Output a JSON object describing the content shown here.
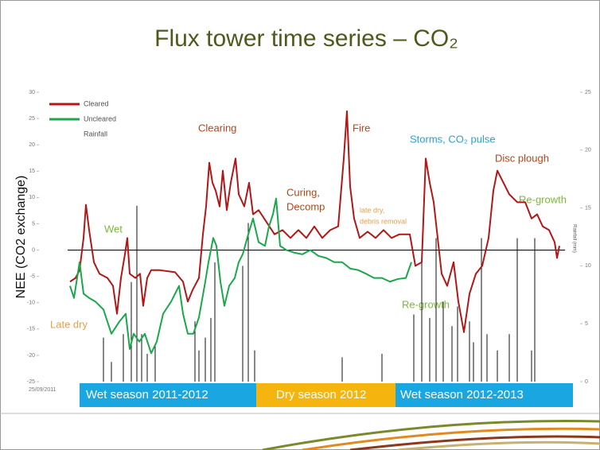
{
  "chart_data": {
    "type": "line",
    "title": "Flux tower time series – CO₂",
    "y_label": "NEE (CO2 exchange)",
    "y2_label": "Rainfall (mm)",
    "x_start_label": "25/09/2011",
    "xlim": [
      0,
      625
    ],
    "ylim": [
      -25,
      30
    ],
    "yticks": [
      -25,
      -20,
      -15,
      -10,
      -5,
      0,
      5,
      10,
      15,
      20,
      25,
      30
    ],
    "y2lim": [
      0,
      25
    ],
    "y2ticks": [
      0,
      5,
      10,
      15,
      20,
      25
    ],
    "legend": "top-left",
    "series": [
      {
        "name": "Cleared",
        "color": "#b01818",
        "type": "line",
        "x": [
          3,
          10,
          15,
          20,
          23,
          27,
          33,
          40,
          50,
          57,
          62,
          67,
          72,
          75,
          78,
          85,
          91,
          95,
          100,
          105,
          115,
          135,
          145,
          151,
          157,
          165,
          170,
          174,
          178,
          182,
          186,
          191,
          195,
          200,
          205,
          211,
          215,
          222,
          228,
          233,
          240,
          250,
          260,
          270,
          280,
          290,
          300,
          310,
          320,
          330,
          340,
          347,
          351,
          355,
          360,
          367,
          377,
          387,
          397,
          407,
          417,
          430,
          437,
          445,
          450,
          455,
          460,
          465,
          470,
          477,
          485,
          491,
          498,
          505,
          513,
          521,
          529,
          535,
          540,
          545,
          555,
          565,
          575,
          583,
          590,
          597,
          605,
          612,
          615,
          618
        ],
        "values": [
          -6,
          -5.3,
          -3.8,
          2.3,
          8.6,
          3.8,
          -2.3,
          -4.5,
          -5.3,
          -6.8,
          -12.1,
          -5.3,
          -0.8,
          2.3,
          -4.5,
          -5.3,
          -4.5,
          -10.6,
          -5.3,
          -3.8,
          -3.8,
          -4.2,
          -6,
          -9.8,
          -7.6,
          -5.3,
          3,
          8.3,
          16.6,
          12.8,
          11.3,
          8.3,
          15.1,
          7.6,
          12.8,
          17.4,
          10.6,
          8.3,
          12.8,
          6.8,
          7.6,
          5.3,
          3,
          3.8,
          2.3,
          3.8,
          2.3,
          4.5,
          2.3,
          3.8,
          4.5,
          17.4,
          26.4,
          12.1,
          6,
          2.3,
          3.5,
          2.3,
          3.8,
          2.3,
          3,
          3,
          -3,
          -2.3,
          17.4,
          12.8,
          9.1,
          2.3,
          -4.5,
          -6.8,
          -2.3,
          -9.8,
          -15.6,
          -8.3,
          -4.5,
          -3,
          2.3,
          11.3,
          15.1,
          13.6,
          10.6,
          9.1,
          9.1,
          6,
          6.8,
          4.5,
          3.8,
          1.5,
          -1.5,
          0.8
        ]
      },
      {
        "name": "Uncleared",
        "color": "#1aa84a",
        "type": "line",
        "x": [
          3,
          8,
          15,
          20,
          27,
          35,
          45,
          55,
          65,
          73,
          78,
          83,
          90,
          97,
          105,
          112,
          120,
          130,
          140,
          145,
          151,
          158,
          165,
          173,
          177,
          183,
          187,
          192,
          197,
          203,
          210,
          215,
          220,
          227,
          233,
          240,
          248,
          253,
          258,
          262,
          267,
          275,
          285,
          295,
          305,
          315,
          325,
          335,
          345,
          355,
          365,
          375,
          385,
          395,
          405,
          415,
          425,
          432
        ],
        "values": [
          -6.8,
          -9.1,
          -2.3,
          -8.3,
          -9.1,
          -9.8,
          -11.3,
          -15.9,
          -13.6,
          -12.1,
          -18.8,
          -15.9,
          -17.4,
          -15.9,
          -19.6,
          -17.4,
          -12.1,
          -9.8,
          -6.8,
          -12.1,
          -15.9,
          -15.9,
          -12.8,
          -6,
          -2.3,
          2.3,
          0.8,
          -6,
          -10.6,
          -6.8,
          -5.3,
          -2.3,
          -0.8,
          3,
          6,
          1.5,
          0.8,
          4.5,
          6.8,
          9.8,
          0.8,
          0,
          -0.5,
          -0.8,
          0,
          -1.1,
          -1.5,
          -2.3,
          -2.3,
          -3.5,
          -3.8,
          -4.5,
          -5.3,
          -5.3,
          -6,
          -5.5,
          -5.3,
          -2.3
        ]
      },
      {
        "name": "Rainfall",
        "color": "#111111",
        "type": "bar",
        "axis": "y2",
        "x": [
          45,
          55,
          70,
          80,
          87,
          93,
          100,
          110,
          160,
          165,
          173,
          180,
          185,
          220,
          227,
          235,
          345,
          395,
          435,
          445,
          455,
          463,
          472,
          483,
          490,
          505,
          510,
          520,
          527,
          540,
          555,
          565,
          583,
          587
        ],
        "values": [
          3.8,
          1.7,
          4.1,
          8.6,
          15.2,
          4.1,
          2.4,
          3.1,
          5.2,
          2.7,
          3.8,
          5.5,
          10.3,
          10,
          13.7,
          2.7,
          2.1,
          2.4,
          5.8,
          11,
          5.5,
          12.4,
          6.9,
          4.8,
          6.5,
          5.2,
          3.4,
          12.4,
          4.1,
          2.7,
          4.1,
          12.4,
          2.7,
          12.4
        ]
      }
    ],
    "annotations": [
      "Clearing",
      "Curing,",
      "Decomp",
      "Fire",
      "Storms, CO₂ pulse",
      "Disc plough",
      "Re-growth",
      "Wet",
      "late dry,",
      "debris removal",
      "Re-growth",
      "Late dry"
    ],
    "seasons": [
      "Wet season 2011-2012",
      "Dry season 2012",
      "Wet season 2012-2013"
    ]
  }
}
